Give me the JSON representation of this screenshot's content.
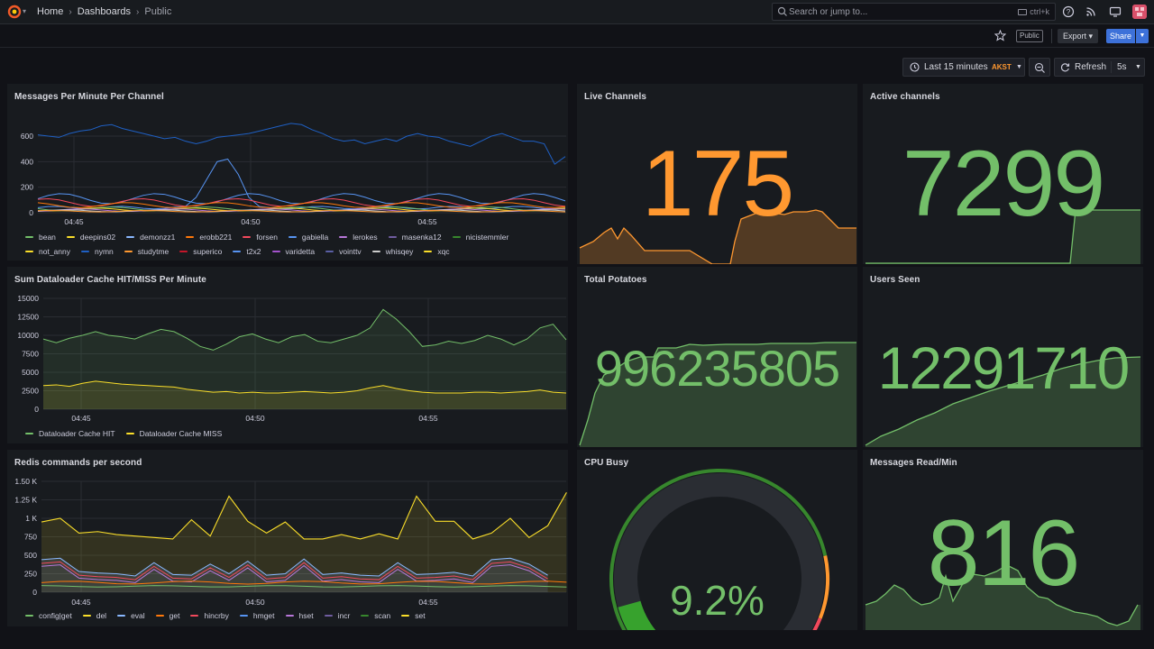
{
  "nav": {
    "breadcrumbs": [
      "Home",
      "Dashboards",
      "Public"
    ],
    "search_placeholder": "Search or jump to...",
    "search_shortcut": "ctrl+k"
  },
  "toolbar": {
    "public_tag": "Public",
    "export_label": "Export",
    "share_label": "Share",
    "time_range": "Last 15 minutes",
    "timezone": "AKST",
    "refresh_label": "Refresh",
    "refresh_interval": "5s"
  },
  "colors": {
    "orange": "#ff9830",
    "green": "#73bf69",
    "yellow": "#fade2a",
    "blue": "#5794f2",
    "red": "#f2495c"
  },
  "panels": {
    "messages": {
      "title": "Messages Per Minute Per Channel",
      "yticks": [
        "600",
        "400",
        "200",
        "0"
      ],
      "xticks": [
        "04:45",
        "04:50",
        "04:55"
      ],
      "legend": [
        {
          "name": "bean",
          "color": "#73bf69"
        },
        {
          "name": "deepins02",
          "color": "#fade2a"
        },
        {
          "name": "demonzz1",
          "color": "#8ab8ff"
        },
        {
          "name": "erobb221",
          "color": "#ff780a"
        },
        {
          "name": "forsen",
          "color": "#f2495c"
        },
        {
          "name": "gabiella",
          "color": "#5794f2"
        },
        {
          "name": "lerokes",
          "color": "#b877d9"
        },
        {
          "name": "masenka12",
          "color": "#705da0"
        },
        {
          "name": "nicistemmler",
          "color": "#37872d"
        },
        {
          "name": "not_anny",
          "color": "#fade2a"
        },
        {
          "name": "nymn",
          "color": "#1f60c4"
        },
        {
          "name": "studytme",
          "color": "#ff9830"
        },
        {
          "name": "superico",
          "color": "#c4162a"
        },
        {
          "name": "t2x2",
          "color": "#5794f2"
        },
        {
          "name": "varidetta",
          "color": "#a352cc"
        },
        {
          "name": "vointtv",
          "color": "#5a5fa5"
        },
        {
          "name": "whisqey",
          "color": "#cccccc"
        },
        {
          "name": "xqc",
          "color": "#fade2a"
        }
      ]
    },
    "live_channels": {
      "title": "Live Channels",
      "value": "175",
      "color": "#ff9830"
    },
    "active_channels": {
      "title": "Active channels",
      "value": "7299",
      "color": "#73bf69"
    },
    "dataloader": {
      "title": "Sum Dataloader Cache HIT/MISS Per Minute",
      "yticks": [
        "15000",
        "12500",
        "10000",
        "7500",
        "5000",
        "2500",
        "0"
      ],
      "xticks": [
        "04:45",
        "04:50",
        "04:55"
      ],
      "legend": [
        {
          "name": "Dataloader Cache HIT",
          "color": "#73bf69"
        },
        {
          "name": "Dataloader Cache MISS",
          "color": "#fade2a"
        }
      ]
    },
    "total_potatoes": {
      "title": "Total Potatoes",
      "value": "996235805",
      "color": "#73bf69"
    },
    "users_seen": {
      "title": "Users Seen",
      "value": "12291710",
      "color": "#73bf69"
    },
    "redis": {
      "title": "Redis commands per second",
      "yticks": [
        "1.50 K",
        "1.25 K",
        "1 K",
        "750",
        "500",
        "250",
        "0"
      ],
      "xticks": [
        "04:45",
        "04:50",
        "04:55"
      ],
      "legend": [
        {
          "name": "config|get",
          "color": "#73bf69"
        },
        {
          "name": "del",
          "color": "#fade2a"
        },
        {
          "name": "eval",
          "color": "#8ab8ff"
        },
        {
          "name": "get",
          "color": "#ff780a"
        },
        {
          "name": "hincrby",
          "color": "#f2495c"
        },
        {
          "name": "hmget",
          "color": "#5794f2"
        },
        {
          "name": "hset",
          "color": "#b877d9"
        },
        {
          "name": "incr",
          "color": "#705da0"
        },
        {
          "name": "scan",
          "color": "#37872d"
        },
        {
          "name": "set",
          "color": "#fade2a"
        }
      ]
    },
    "cpu_busy": {
      "title": "CPU Busy",
      "value": "9.2%",
      "percent": 9.2,
      "color": "#73bf69"
    },
    "messages_read": {
      "title": "Messages Read/Min",
      "value": "816",
      "color": "#73bf69"
    }
  }
}
